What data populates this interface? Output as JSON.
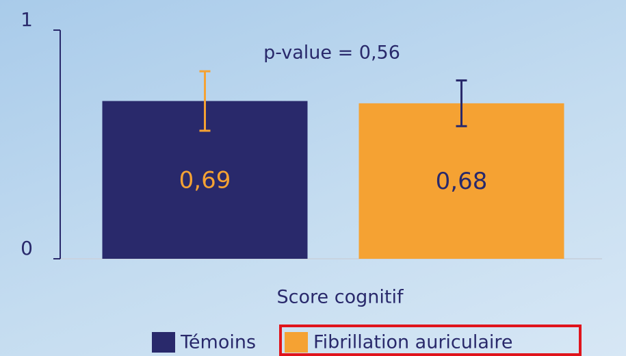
{
  "chart_data": {
    "type": "bar",
    "categories": [
      "Score cognitif"
    ],
    "series": [
      {
        "name": "Témoins",
        "color": "#29296b",
        "values": [
          0.69
        ],
        "value_labels": [
          "0,69"
        ],
        "errors": [
          0.13
        ],
        "error_color": "#f5a233"
      },
      {
        "name": "Fibrillation auriculaire",
        "color": "#f5a233",
        "values": [
          0.68
        ],
        "value_labels": [
          "0,68"
        ],
        "errors": [
          0.1
        ],
        "error_color": "#29296b"
      }
    ],
    "annotation": "p-value = 0,56",
    "ylim": [
      0,
      1
    ],
    "yticks": [
      0,
      1
    ],
    "grid": false,
    "legend": "bottom"
  }
}
